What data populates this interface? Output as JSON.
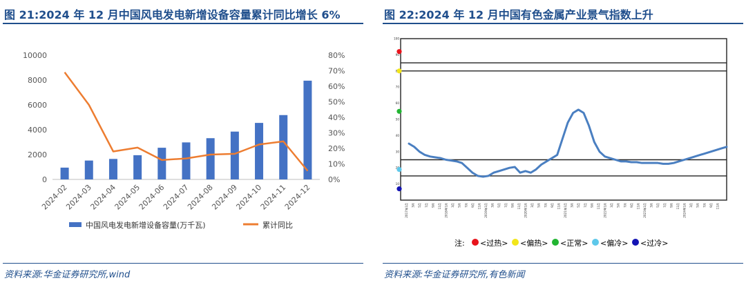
{
  "left_panel": {
    "title": "图 21:2024 年 12 月中国风电发电新增设备容量累计同比增长 6%",
    "source": "资料来源:华金证券研究所,wind"
  },
  "right_panel": {
    "title": "图 22:2024 年 12 月中国有色金属产业景气指数上升",
    "source": "资料来源:华金证券研究所,有色新闻",
    "note_label": "注:",
    "legend": [
      {
        "label": "<过热>",
        "color": "#e8141c"
      },
      {
        "label": "<偏热>",
        "color": "#f2e61a"
      },
      {
        "label": "<正常>",
        "color": "#22b532"
      },
      {
        "label": "<偏冷>",
        "color": "#5ec8ea"
      },
      {
        "label": "<过冷>",
        "color": "#1414b4"
      }
    ]
  },
  "chart_data": [
    {
      "type": "bar",
      "categories": [
        "2024-02",
        "2024-03",
        "2024-04",
        "2024-05",
        "2024-06",
        "2024-07",
        "2024-08",
        "2024-09",
        "2024-10",
        "2024-11",
        "2024-12"
      ],
      "series": [
        {
          "name": "中国风电发电新增设备容量(万千瓦)",
          "type": "bar",
          "axis": "left",
          "color": "#4472c4",
          "values": [
            950,
            1520,
            1650,
            1950,
            2550,
            2980,
            3320,
            3850,
            4550,
            5180,
            7950
          ]
        },
        {
          "name": "累计同比",
          "type": "line",
          "axis": "right",
          "color": "#ed7d31",
          "values": [
            69,
            48,
            18,
            20.5,
            12.5,
            13.5,
            16,
            16.5,
            22.5,
            24.5,
            5.5
          ]
        }
      ],
      "ylim": [
        0,
        10000
      ],
      "yticks": [
        "0",
        "2000",
        "4000",
        "6000",
        "8000",
        "10000"
      ],
      "y2lim": [
        0,
        80
      ],
      "y2ticks": [
        "0%",
        "10%",
        "20%",
        "30%",
        "40%",
        "50%",
        "60%",
        "70%",
        "80%"
      ],
      "legend_position": "bottom",
      "grid": false
    },
    {
      "type": "line",
      "ylim": [
        0,
        100
      ],
      "yticks": [
        "10",
        "20",
        "30",
        "40",
        "50",
        "60",
        "70",
        "80",
        "90",
        "100"
      ],
      "threshold_lines": [
        85,
        80,
        25,
        15
      ],
      "series": [
        {
          "color": "#4a7fc1",
          "values": [
            35,
            33,
            30,
            28,
            27,
            26.5,
            26,
            25,
            24.5,
            24,
            23,
            20,
            17,
            15,
            14.5,
            15,
            17,
            18,
            19,
            20,
            20.5,
            17,
            18,
            17,
            19,
            22,
            24,
            26,
            28,
            38,
            48,
            54,
            56,
            54,
            46,
            36,
            30,
            27,
            26,
            25,
            24,
            24,
            23.5,
            23.5,
            23,
            23,
            23,
            23,
            22.5,
            22.5,
            23,
            24,
            25,
            26,
            27,
            28,
            29,
            30,
            31,
            32,
            33
          ]
        }
      ],
      "x_year_labels": [
        "2017年",
        "2018年",
        "2019年",
        "2020年",
        "2021年",
        "2022年",
        "2023年",
        "2024年"
      ],
      "x_month_labels": [
        "1月",
        "3月",
        "5月",
        "7月",
        "9月",
        "11月"
      ],
      "last_year_months": [
        "1月",
        "3月",
        "5月",
        "7月",
        "9月",
        "11月"
      ],
      "legend_position": "bottom",
      "grid": false
    }
  ]
}
